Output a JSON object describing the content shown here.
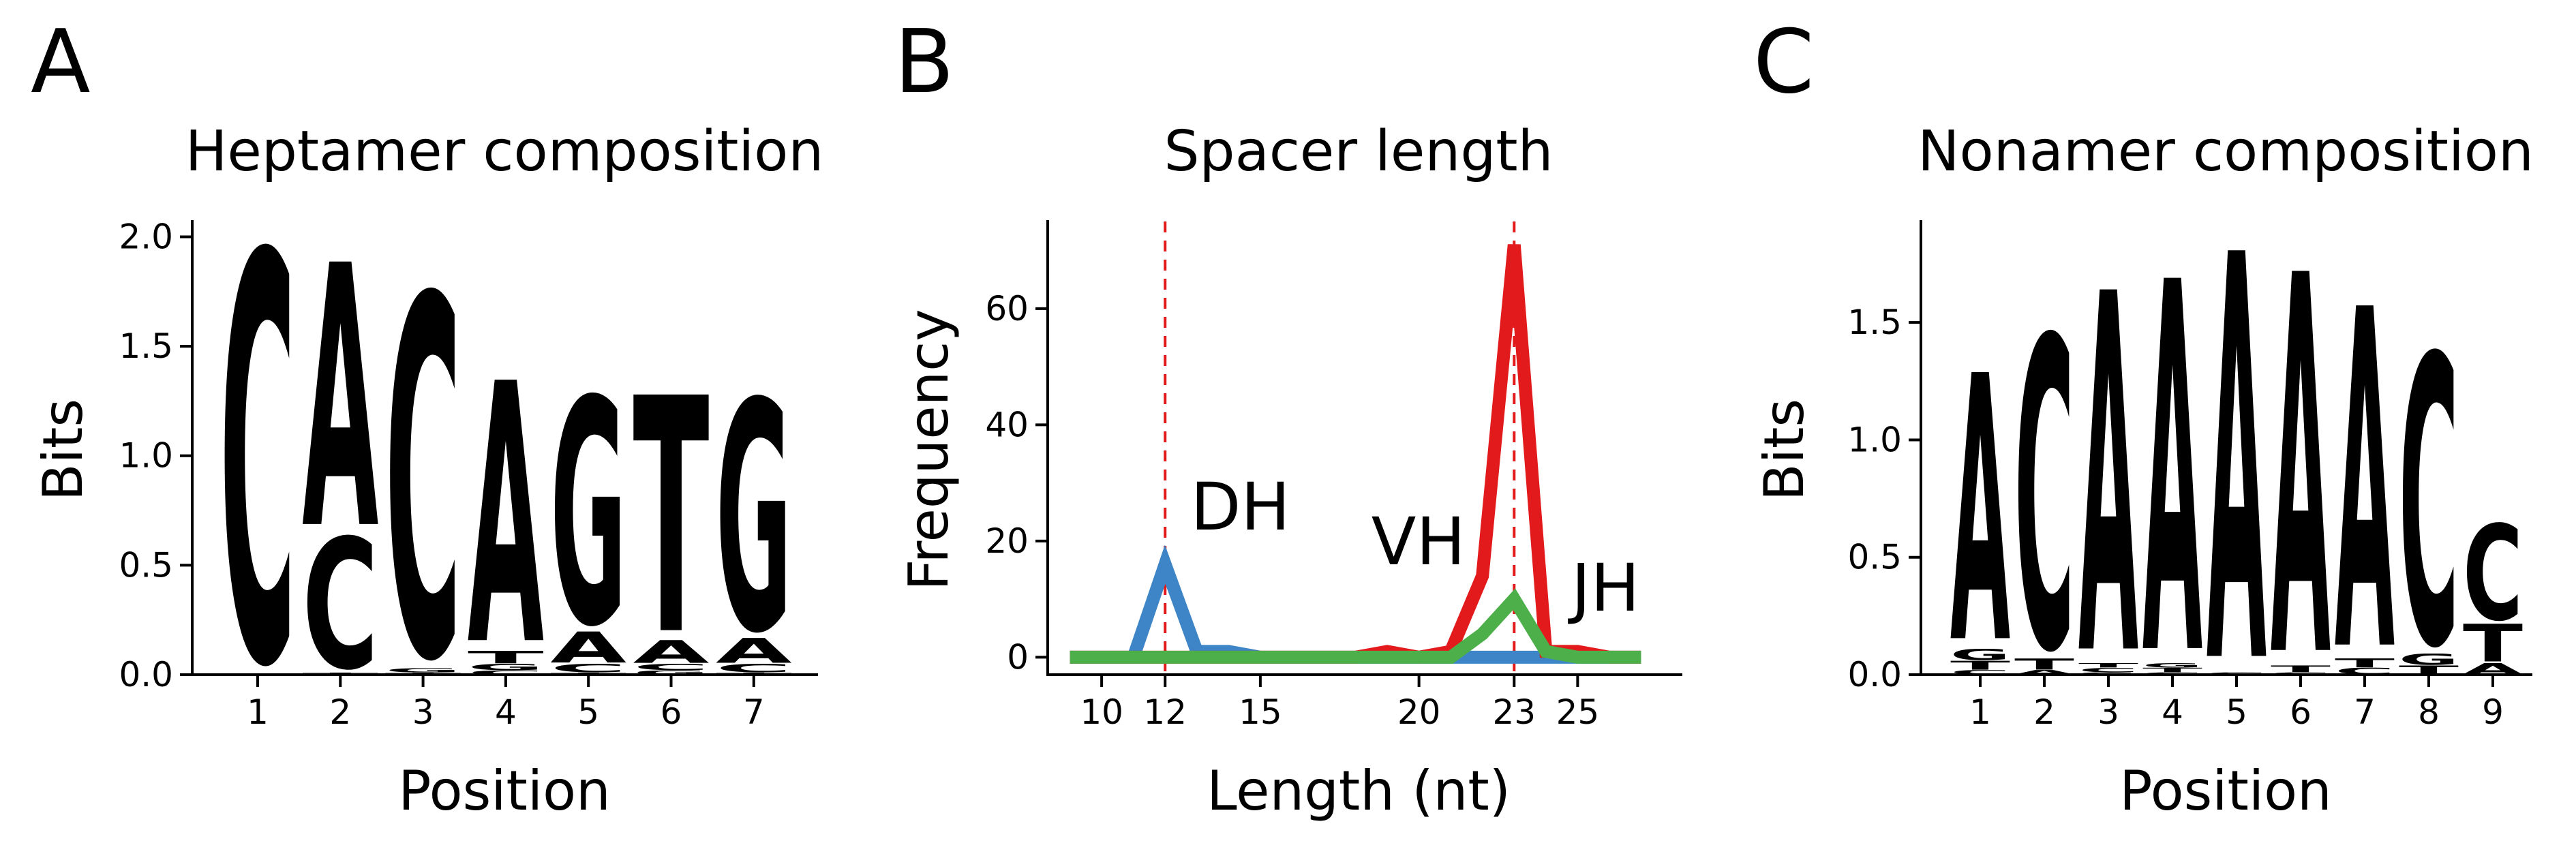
{
  "colors": {
    "A": "#109648",
    "C": "#255C99",
    "G": "#F7B32B",
    "T": "#D62839",
    "DH": "#3D85C6",
    "VH": "#E31A1C",
    "JH": "#4DAF4A",
    "ref_line": "#E31A1C"
  },
  "chart_data": [
    {
      "panel_label": "A",
      "type": "sequence-logo",
      "title": "Heptamer composition",
      "xlabel": "Position",
      "ylabel": "Bits",
      "ylim": [
        0,
        2.07
      ],
      "yticks": [
        "0.0",
        "0.5",
        "1.0",
        "1.5",
        "2.0"
      ],
      "xticks": [
        "1",
        "2",
        "3",
        "4",
        "5",
        "6",
        "7"
      ],
      "positions": [
        [
          {
            "letter": "C",
            "bits": 1.97
          }
        ],
        [
          {
            "letter": "T",
            "bits": 0.01
          },
          {
            "letter": "C",
            "bits": 0.63
          },
          {
            "letter": "A",
            "bits": 1.27
          }
        ],
        [
          {
            "letter": "T",
            "bits": 0.01
          },
          {
            "letter": "G",
            "bits": 0.02
          },
          {
            "letter": "C",
            "bits": 1.74
          }
        ],
        [
          {
            "letter": "C",
            "bits": 0.02
          },
          {
            "letter": "G",
            "bits": 0.03
          },
          {
            "letter": "T",
            "bits": 0.06
          },
          {
            "letter": "A",
            "bits": 1.26
          }
        ],
        [
          {
            "letter": "T",
            "bits": 0.01
          },
          {
            "letter": "C",
            "bits": 0.04
          },
          {
            "letter": "A",
            "bits": 0.15
          },
          {
            "letter": "G",
            "bits": 1.09
          }
        ],
        [
          {
            "letter": "G",
            "bits": 0.02
          },
          {
            "letter": "C",
            "bits": 0.03
          },
          {
            "letter": "A",
            "bits": 0.11
          },
          {
            "letter": "T",
            "bits": 1.14
          }
        ],
        [
          {
            "letter": "T",
            "bits": 0.01
          },
          {
            "letter": "C",
            "bits": 0.04
          },
          {
            "letter": "A",
            "bits": 0.12
          },
          {
            "letter": "G",
            "bits": 1.11
          }
        ]
      ]
    },
    {
      "panel_label": "B",
      "type": "line",
      "title": "Spacer length",
      "xlabel": "Length (nt)",
      "ylabel": "Frequency",
      "xlim": [
        8.3,
        28.3
      ],
      "ylim": [
        -3,
        75
      ],
      "xticks": [
        {
          "value": 10,
          "label": "10",
          "highlight": false
        },
        {
          "value": 12,
          "label": "12",
          "highlight": true
        },
        {
          "value": 15,
          "label": "15",
          "highlight": false
        },
        {
          "value": 20,
          "label": "20",
          "highlight": false
        },
        {
          "value": 23,
          "label": "23",
          "highlight": true
        },
        {
          "value": 25,
          "label": "25",
          "highlight": false
        }
      ],
      "yticks": [
        "0",
        "20",
        "40",
        "60"
      ],
      "ytick_values": [
        0,
        20,
        40,
        60
      ],
      "vlines": [
        12,
        23
      ],
      "x": [
        9,
        10,
        11,
        12,
        13,
        14,
        15,
        16,
        17,
        18,
        19,
        20,
        21,
        22,
        23,
        24,
        25,
        26,
        27
      ],
      "series": [
        {
          "name": "DH",
          "label_at": [
            12.8,
            22
          ],
          "values": [
            0,
            0,
            0,
            16,
            1,
            1,
            0,
            0,
            0,
            0,
            0,
            0,
            0,
            0,
            0,
            0,
            0,
            0,
            0
          ]
        },
        {
          "name": "VH",
          "label_at": [
            18.5,
            16
          ],
          "values": [
            0,
            0,
            0,
            0,
            0,
            0,
            0,
            0,
            0,
            0,
            1,
            0,
            1,
            14,
            71,
            1,
            1,
            0,
            0
          ]
        },
        {
          "name": "JH",
          "label_at": [
            24.8,
            8
          ],
          "values": [
            0,
            0,
            0,
            0,
            0,
            0,
            0,
            0,
            0,
            0,
            0,
            0,
            0,
            4,
            10,
            1,
            0,
            0,
            0
          ]
        }
      ]
    },
    {
      "panel_label": "C",
      "type": "sequence-logo",
      "title": "Nonamer composition",
      "xlabel": "Position",
      "ylabel": "Bits",
      "ylim": [
        0,
        1.93
      ],
      "yticks": [
        "0.0",
        "0.5",
        "1.0",
        "1.5"
      ],
      "xticks": [
        "1",
        "2",
        "3",
        "4",
        "5",
        "6",
        "7",
        "8",
        "9"
      ],
      "positions": [
        [
          {
            "letter": "C",
            "bits": 0.02
          },
          {
            "letter": "T",
            "bits": 0.04
          },
          {
            "letter": "G",
            "bits": 0.05
          },
          {
            "letter": "A",
            "bits": 1.2
          }
        ],
        [
          {
            "letter": "A",
            "bits": 0.02
          },
          {
            "letter": "T",
            "bits": 0.05
          },
          {
            "letter": "C",
            "bits": 1.4
          }
        ],
        [
          {
            "letter": "G",
            "bits": 0.01
          },
          {
            "letter": "C",
            "bits": 0.02
          },
          {
            "letter": "T",
            "bits": 0.02
          },
          {
            "letter": "A",
            "bits": 1.62
          }
        ],
        [
          {
            "letter": "C",
            "bits": 0.01
          },
          {
            "letter": "T",
            "bits": 0.02
          },
          {
            "letter": "G",
            "bits": 0.02
          },
          {
            "letter": "A",
            "bits": 1.67
          }
        ],
        [
          {
            "letter": "C",
            "bits": 0.01
          },
          {
            "letter": "A",
            "bits": 1.83
          }
        ],
        [
          {
            "letter": "C",
            "bits": 0.01
          },
          {
            "letter": "T",
            "bits": 0.03
          },
          {
            "letter": "A",
            "bits": 1.71
          }
        ],
        [
          {
            "letter": "C",
            "bits": 0.03
          },
          {
            "letter": "T",
            "bits": 0.04
          },
          {
            "letter": "A",
            "bits": 1.53
          }
        ],
        [
          {
            "letter": "T",
            "bits": 0.04
          },
          {
            "letter": "G",
            "bits": 0.05
          },
          {
            "letter": "C",
            "bits": 1.3
          }
        ],
        [
          {
            "letter": "A",
            "bits": 0.05
          },
          {
            "letter": "T",
            "bits": 0.17
          },
          {
            "letter": "C",
            "bits": 0.43
          }
        ]
      ]
    }
  ]
}
